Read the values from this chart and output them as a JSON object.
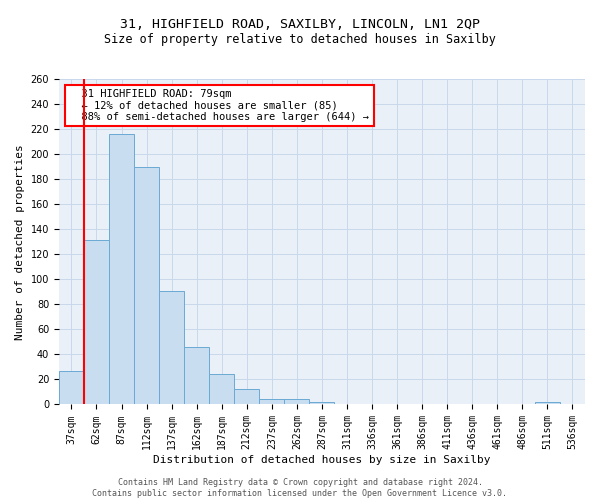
{
  "title1": "31, HIGHFIELD ROAD, SAXILBY, LINCOLN, LN1 2QP",
  "title2": "Size of property relative to detached houses in Saxilby",
  "xlabel": "Distribution of detached houses by size in Saxilby",
  "ylabel": "Number of detached properties",
  "bar_color": "#c9ddf0",
  "bar_edge_color": "#6aaad4",
  "bins": [
    "37sqm",
    "62sqm",
    "87sqm",
    "112sqm",
    "137sqm",
    "162sqm",
    "187sqm",
    "212sqm",
    "237sqm",
    "262sqm",
    "287sqm",
    "311sqm",
    "336sqm",
    "361sqm",
    "386sqm",
    "411sqm",
    "436sqm",
    "461sqm",
    "486sqm",
    "511sqm",
    "536sqm"
  ],
  "values": [
    27,
    131,
    216,
    190,
    91,
    46,
    24,
    12,
    4,
    4,
    2,
    0,
    0,
    0,
    0,
    0,
    0,
    0,
    0,
    2,
    0
  ],
  "annotation_text": "  31 HIGHFIELD ROAD: 79sqm\n  ← 12% of detached houses are smaller (85)\n  88% of semi-detached houses are larger (644) →",
  "annotation_box_color": "white",
  "annotation_box_edge_color": "red",
  "ylim": [
    0,
    260
  ],
  "yticks": [
    0,
    20,
    40,
    60,
    80,
    100,
    120,
    140,
    160,
    180,
    200,
    220,
    240,
    260
  ],
  "grid_color": "#c8d8ea",
  "background_color": "#eaf0f8",
  "footnote": "Contains HM Land Registry data © Crown copyright and database right 2024.\nContains public sector information licensed under the Open Government Licence v3.0.",
  "title1_fontsize": 9.5,
  "title2_fontsize": 8.5,
  "xlabel_fontsize": 8,
  "ylabel_fontsize": 8,
  "tick_fontsize": 7,
  "annotation_fontsize": 7.5,
  "footnote_fontsize": 6
}
